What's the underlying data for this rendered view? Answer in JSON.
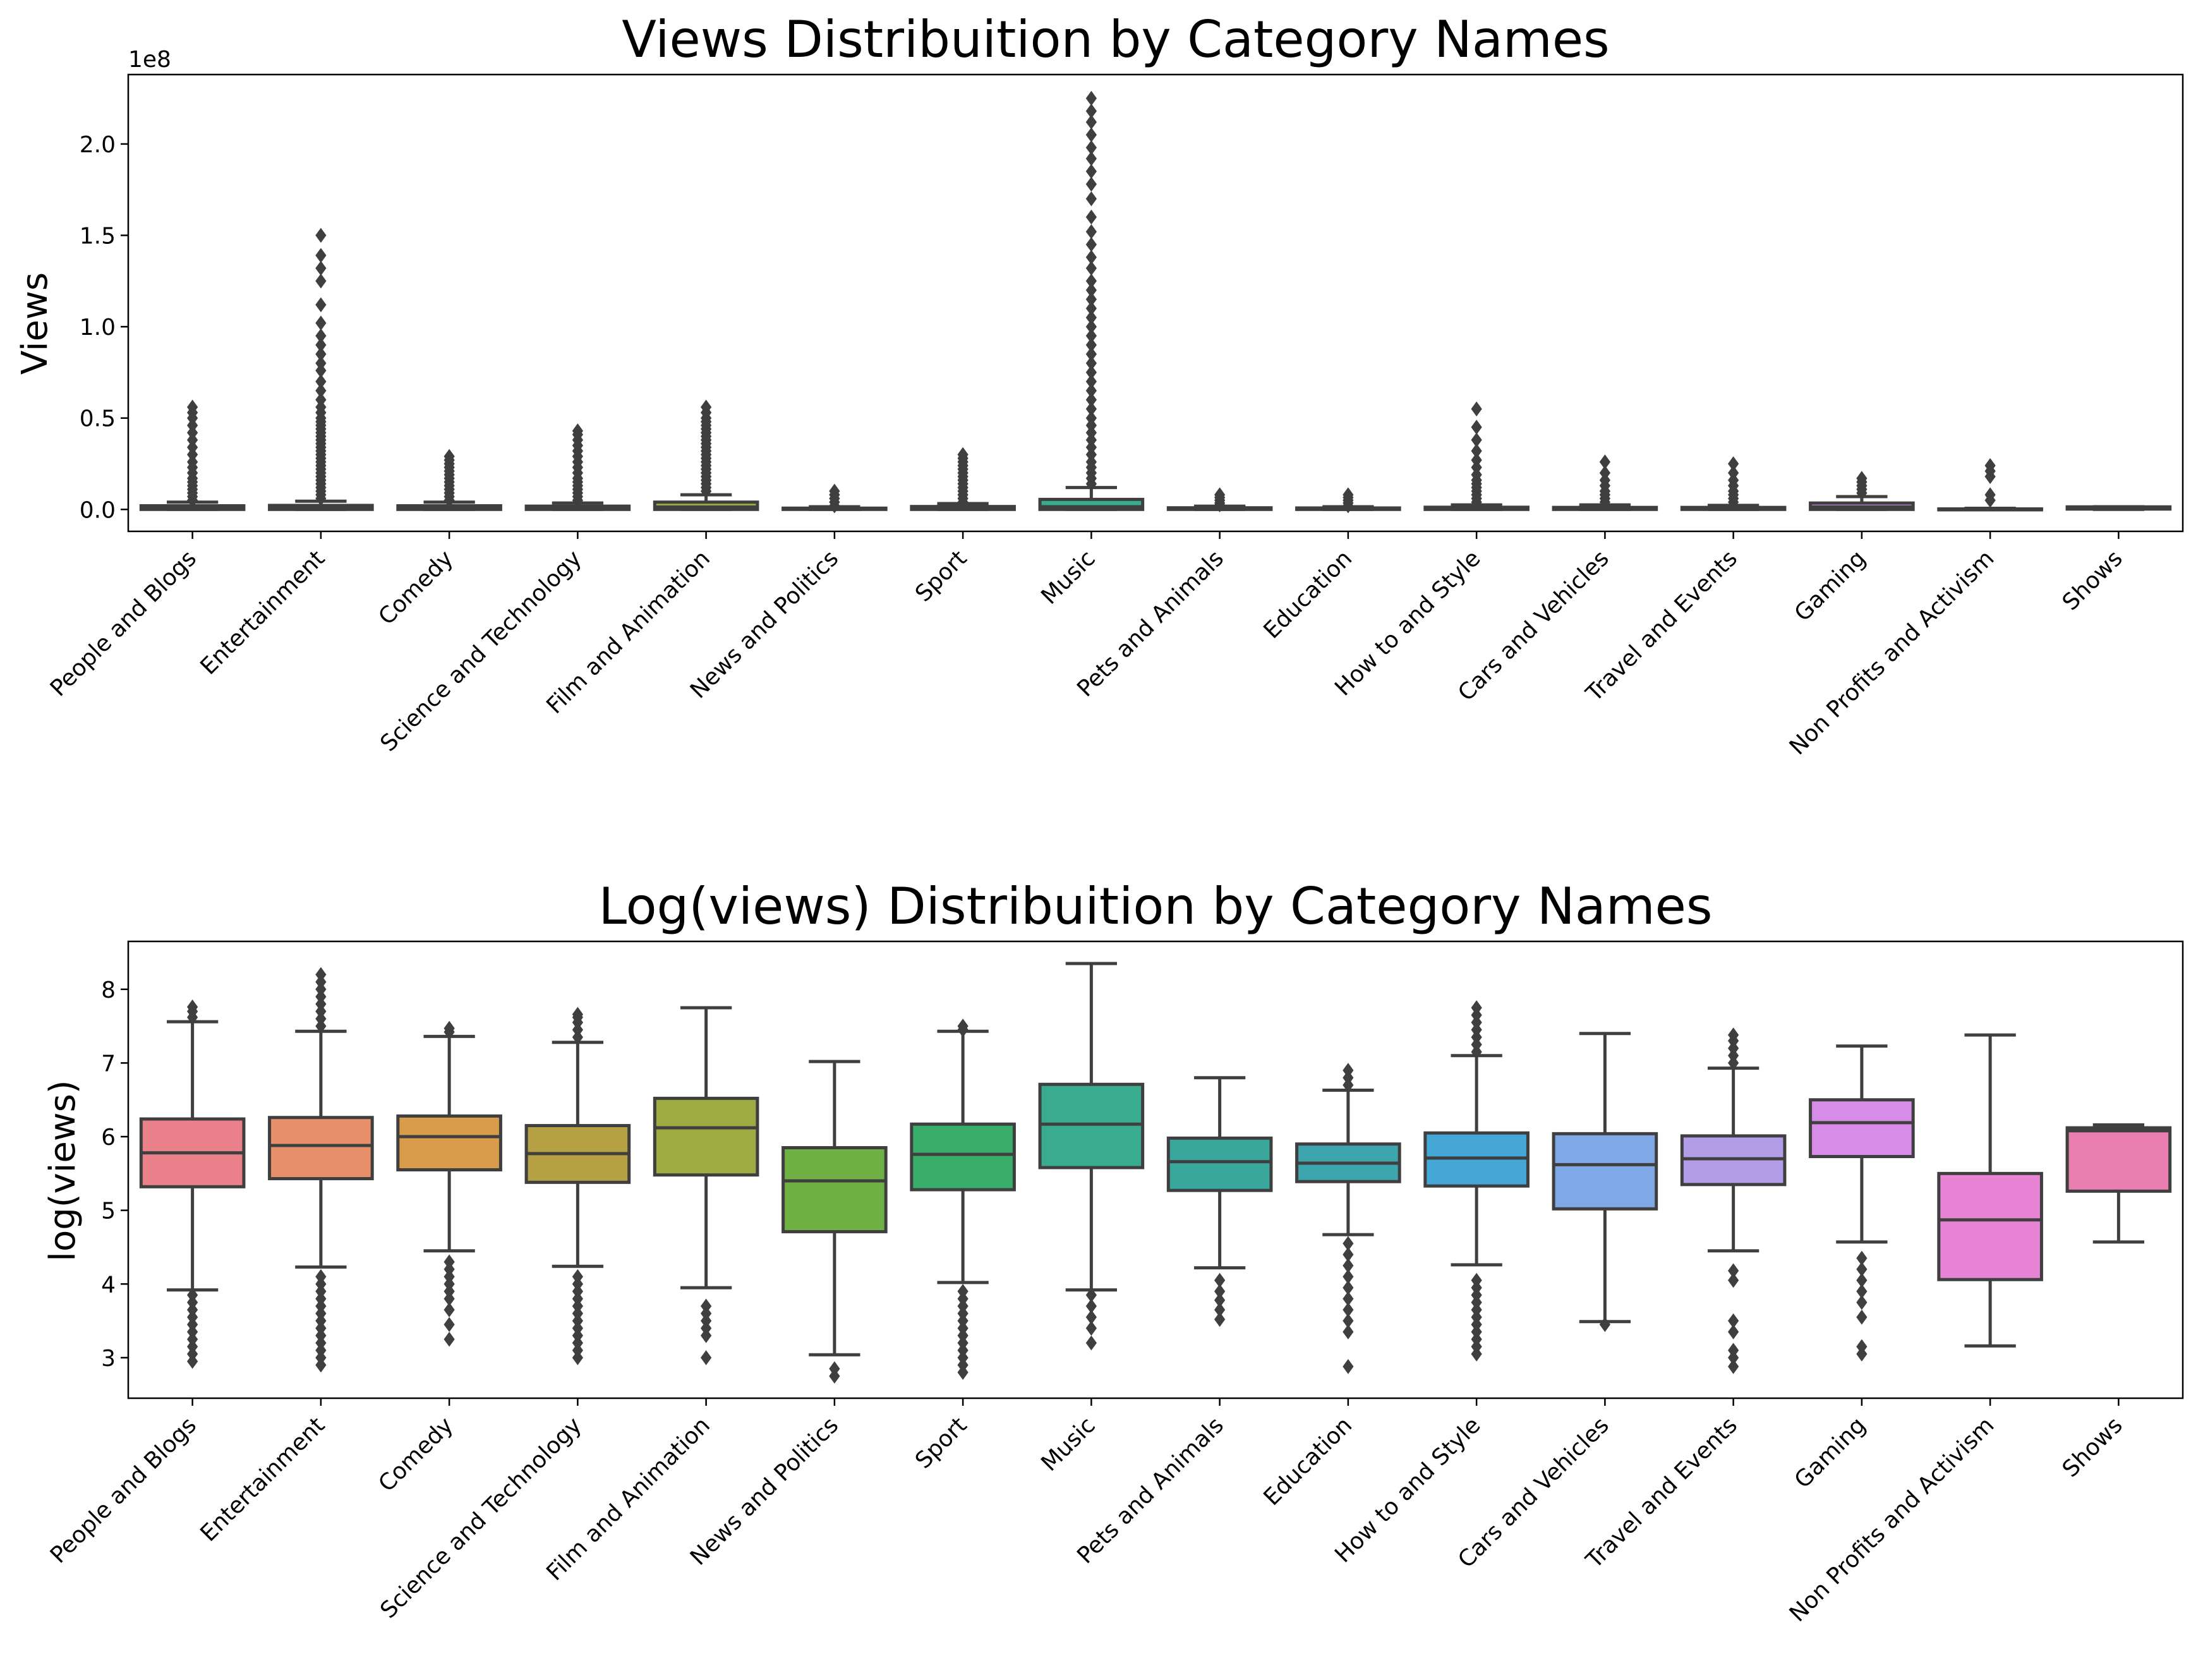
{
  "chart_data": [
    {
      "type": "box",
      "title": "Views Distribuition by Category Names",
      "xlabel": "",
      "ylabel": "Views",
      "y_offset_label": "1e8",
      "ylim": [
        -0.12,
        2.38
      ],
      "yticks": [
        0.0,
        0.5,
        1.0,
        1.5,
        2.0
      ],
      "ytick_labels": [
        "0.0",
        "0.5",
        "1.0",
        "1.5",
        "2.0"
      ],
      "categories": [
        "People and Blogs",
        "Entertainment",
        "Comedy",
        "Science and Technology",
        "Film and Animation",
        "News and Politics",
        "Sport",
        "Music",
        "Pets and Animals",
        "Education",
        "How to and Style",
        "Cars and Vehicles",
        "Travel and Events",
        "Gaming",
        "Non Profits and Activism",
        "Shows"
      ],
      "colors": [
        "#e9808a",
        "#e8906c",
        "#d89c4a",
        "#b6a044",
        "#9eab42",
        "#6fb144",
        "#39ad6a",
        "#39ab8f",
        "#3aa79d",
        "#3ca5ad",
        "#45a7d6",
        "#7ea8e6",
        "#b49de8",
        "#d78ce9",
        "#e884d6",
        "#e87fb0"
      ],
      "boxes": [
        {
          "whislo": 0.0,
          "q1": 0.0,
          "med": 0.006,
          "q3": 0.02,
          "whishi": 0.04,
          "fliers": [
            0.05,
            0.07,
            0.09,
            0.11,
            0.13,
            0.15,
            0.17,
            0.2,
            0.23,
            0.26,
            0.3,
            0.34,
            0.38,
            0.42,
            0.46,
            0.5,
            0.53,
            0.56
          ]
        },
        {
          "whislo": 0.0,
          "q1": 0.0,
          "med": 0.007,
          "q3": 0.022,
          "whishi": 0.045,
          "fliers": [
            0.06,
            0.08,
            0.1,
            0.12,
            0.14,
            0.16,
            0.18,
            0.2,
            0.22,
            0.24,
            0.26,
            0.28,
            0.3,
            0.32,
            0.34,
            0.36,
            0.38,
            0.4,
            0.42,
            0.44,
            0.46,
            0.48,
            0.5,
            0.53,
            0.56,
            0.6,
            0.65,
            0.7,
            0.76,
            0.8,
            0.85,
            0.9,
            0.95,
            1.02,
            1.12,
            1.25,
            1.32,
            1.39,
            1.5
          ]
        },
        {
          "whislo": 0.0,
          "q1": 0.0,
          "med": 0.01,
          "q3": 0.02,
          "whishi": 0.04,
          "fliers": [
            0.05,
            0.07,
            0.09,
            0.11,
            0.13,
            0.15,
            0.17,
            0.19,
            0.21,
            0.23,
            0.25,
            0.27,
            0.29
          ]
        },
        {
          "whislo": 0.0,
          "q1": 0.0,
          "med": 0.006,
          "q3": 0.018,
          "whishi": 0.035,
          "fliers": [
            0.05,
            0.07,
            0.09,
            0.11,
            0.13,
            0.15,
            0.17,
            0.2,
            0.23,
            0.26,
            0.29,
            0.32,
            0.35,
            0.38,
            0.41,
            0.43
          ]
        },
        {
          "whislo": 0.0,
          "q1": 0.0,
          "med": 0.013,
          "q3": 0.04,
          "whishi": 0.08,
          "fliers": [
            0.1,
            0.12,
            0.14,
            0.16,
            0.18,
            0.2,
            0.22,
            0.24,
            0.26,
            0.28,
            0.3,
            0.32,
            0.34,
            0.36,
            0.38,
            0.4,
            0.42,
            0.44,
            0.46,
            0.48,
            0.5,
            0.53,
            0.56
          ]
        },
        {
          "whislo": 0.0,
          "q1": 0.0,
          "med": 0.002,
          "q3": 0.007,
          "whishi": 0.015,
          "fliers": [
            0.02,
            0.04,
            0.06,
            0.08,
            0.1
          ]
        },
        {
          "whislo": 0.0,
          "q1": 0.0,
          "med": 0.006,
          "q3": 0.016,
          "whishi": 0.032,
          "fliers": [
            0.04,
            0.06,
            0.08,
            0.1,
            0.12,
            0.14,
            0.16,
            0.18,
            0.2,
            0.22,
            0.24,
            0.26,
            0.28,
            0.3
          ]
        },
        {
          "whislo": 0.0,
          "q1": 0.0,
          "med": 0.015,
          "q3": 0.055,
          "whishi": 0.12,
          "fliers": [
            0.14,
            0.17,
            0.2,
            0.23,
            0.26,
            0.3,
            0.34,
            0.38,
            0.42,
            0.46,
            0.5,
            0.55,
            0.6,
            0.65,
            0.7,
            0.75,
            0.8,
            0.85,
            0.9,
            0.95,
            1.0,
            1.05,
            1.1,
            1.15,
            1.2,
            1.25,
            1.32,
            1.38,
            1.45,
            1.52,
            1.6,
            1.7,
            1.78,
            1.85,
            1.92,
            1.98,
            2.05,
            2.12,
            2.18,
            2.25
          ]
        },
        {
          "whislo": 0.0,
          "q1": 0.0,
          "med": 0.004,
          "q3": 0.009,
          "whishi": 0.018,
          "fliers": [
            0.025,
            0.035,
            0.05,
            0.065,
            0.08
          ]
        },
        {
          "whislo": 0.0,
          "q1": 0.0,
          "med": 0.003,
          "q3": 0.008,
          "whishi": 0.015,
          "fliers": [
            0.02,
            0.035,
            0.05,
            0.065,
            0.08
          ]
        },
        {
          "whislo": 0.0,
          "q1": 0.0,
          "med": 0.005,
          "q3": 0.012,
          "whishi": 0.025,
          "fliers": [
            0.04,
            0.06,
            0.08,
            0.1,
            0.12,
            0.14,
            0.16,
            0.19,
            0.23,
            0.27,
            0.32,
            0.38,
            0.45,
            0.55
          ]
        },
        {
          "whislo": 0.0,
          "q1": 0.0,
          "med": 0.004,
          "q3": 0.011,
          "whishi": 0.025,
          "fliers": [
            0.04,
            0.06,
            0.08,
            0.1,
            0.13,
            0.16,
            0.2,
            0.26
          ]
        },
        {
          "whislo": 0.0,
          "q1": 0.0,
          "med": 0.005,
          "q3": 0.011,
          "whishi": 0.022,
          "fliers": [
            0.04,
            0.06,
            0.08,
            0.1,
            0.13,
            0.16,
            0.2,
            0.25
          ]
        },
        {
          "whislo": 0.0,
          "q1": 0.0,
          "med": 0.014,
          "q3": 0.035,
          "whishi": 0.07,
          "fliers": [
            0.09,
            0.11,
            0.13,
            0.15,
            0.17
          ]
        },
        {
          "whislo": 0.0,
          "q1": 0.0,
          "med": 0.001,
          "q3": 0.003,
          "whishi": 0.006,
          "fliers": [
            0.05,
            0.08,
            0.18,
            0.21,
            0.24
          ]
        },
        {
          "whislo": 0.0,
          "q1": 0.002,
          "med": 0.012,
          "q3": 0.014,
          "whishi": 0.015,
          "fliers": []
        }
      ]
    },
    {
      "type": "box",
      "title": "Log(views) Distribuition by Category Names",
      "xlabel": "",
      "ylabel": "log(views)",
      "ylim": [
        2.45,
        8.65
      ],
      "yticks": [
        3,
        4,
        5,
        6,
        7,
        8
      ],
      "ytick_labels": [
        "3",
        "4",
        "5",
        "6",
        "7",
        "8"
      ],
      "categories": [
        "People and Blogs",
        "Entertainment",
        "Comedy",
        "Science and Technology",
        "Film and Animation",
        "News and Politics",
        "Sport",
        "Music",
        "Pets and Animals",
        "Education",
        "How to and Style",
        "Cars and Vehicles",
        "Travel and Events",
        "Gaming",
        "Non Profits and Activism",
        "Shows"
      ],
      "colors": [
        "#e9808a",
        "#e8906c",
        "#d89c4a",
        "#b6a044",
        "#9eab42",
        "#6fb144",
        "#39ad6a",
        "#39ab8f",
        "#3aa79d",
        "#3ca5ad",
        "#45a7d6",
        "#7ea8e6",
        "#b49de8",
        "#d78ce9",
        "#e884d6",
        "#e87fb0"
      ],
      "boxes": [
        {
          "whislo": 3.92,
          "q1": 5.32,
          "med": 5.78,
          "q3": 6.24,
          "whishi": 7.56,
          "fliers": [
            2.95,
            3.05,
            3.15,
            3.25,
            3.35,
            3.45,
            3.55,
            3.65,
            3.75,
            3.85,
            7.62,
            7.7,
            7.76
          ]
        },
        {
          "whislo": 4.23,
          "q1": 5.43,
          "med": 5.88,
          "q3": 6.26,
          "whishi": 7.43,
          "fliers": [
            2.9,
            3.0,
            3.1,
            3.2,
            3.3,
            3.4,
            3.5,
            3.6,
            3.7,
            3.8,
            3.9,
            4.0,
            4.1,
            7.5,
            7.6,
            7.7,
            7.8,
            7.9,
            8.0,
            8.1,
            8.2
          ]
        },
        {
          "whislo": 4.45,
          "q1": 5.55,
          "med": 6.0,
          "q3": 6.28,
          "whishi": 7.36,
          "fliers": [
            3.25,
            3.45,
            3.65,
            3.8,
            3.9,
            4.0,
            4.1,
            4.2,
            4.3,
            7.42,
            7.47
          ]
        },
        {
          "whislo": 4.24,
          "q1": 5.38,
          "med": 5.77,
          "q3": 6.15,
          "whishi": 7.28,
          "fliers": [
            3.0,
            3.1,
            3.2,
            3.3,
            3.4,
            3.5,
            3.6,
            3.7,
            3.8,
            3.9,
            4.0,
            4.1,
            7.35,
            7.45,
            7.55,
            7.62,
            7.66
          ]
        },
        {
          "whislo": 3.95,
          "q1": 5.48,
          "med": 6.12,
          "q3": 6.52,
          "whishi": 7.75,
          "fliers": [
            3.0,
            3.3,
            3.4,
            3.5,
            3.6,
            3.7
          ]
        },
        {
          "whislo": 3.04,
          "q1": 4.71,
          "med": 5.4,
          "q3": 5.85,
          "whishi": 7.02,
          "fliers": [
            2.75,
            2.85
          ]
        },
        {
          "whislo": 4.02,
          "q1": 5.28,
          "med": 5.76,
          "q3": 6.17,
          "whishi": 7.43,
          "fliers": [
            2.8,
            2.9,
            3.0,
            3.1,
            3.2,
            3.3,
            3.4,
            3.5,
            3.6,
            3.7,
            3.8,
            3.9,
            7.45,
            7.5
          ]
        },
        {
          "whislo": 3.92,
          "q1": 5.58,
          "med": 6.17,
          "q3": 6.71,
          "whishi": 8.35,
          "fliers": [
            3.2,
            3.4,
            3.55,
            3.7,
            3.85
          ]
        },
        {
          "whislo": 4.22,
          "q1": 5.27,
          "med": 5.66,
          "q3": 5.98,
          "whishi": 6.8,
          "fliers": [
            3.52,
            3.65,
            3.78,
            3.9,
            4.05
          ]
        },
        {
          "whislo": 4.67,
          "q1": 5.39,
          "med": 5.64,
          "q3": 5.9,
          "whishi": 6.63,
          "fliers": [
            2.88,
            3.35,
            3.5,
            3.65,
            3.8,
            3.95,
            4.1,
            4.25,
            4.4,
            4.55,
            6.7,
            6.8,
            6.9
          ]
        },
        {
          "whislo": 4.26,
          "q1": 5.33,
          "med": 5.71,
          "q3": 6.05,
          "whishi": 7.1,
          "fliers": [
            3.05,
            3.15,
            3.25,
            3.35,
            3.45,
            3.55,
            3.65,
            3.75,
            3.85,
            3.95,
            4.05,
            7.15,
            7.25,
            7.35,
            7.45,
            7.55,
            7.65,
            7.75
          ]
        },
        {
          "whislo": 3.49,
          "q1": 5.02,
          "med": 5.62,
          "q3": 6.04,
          "whishi": 7.4,
          "fliers": [
            3.45
          ]
        },
        {
          "whislo": 4.45,
          "q1": 5.35,
          "med": 5.7,
          "q3": 6.01,
          "whishi": 6.93,
          "fliers": [
            2.88,
            3.0,
            3.1,
            3.35,
            3.5,
            4.05,
            4.18,
            7.0,
            7.1,
            7.2,
            7.3,
            7.38
          ]
        },
        {
          "whislo": 4.57,
          "q1": 5.73,
          "med": 6.19,
          "q3": 6.5,
          "whishi": 7.23,
          "fliers": [
            3.05,
            3.15,
            3.55,
            3.75,
            3.9,
            4.05,
            4.2,
            4.35
          ]
        },
        {
          "whislo": 3.16,
          "q1": 4.06,
          "med": 4.87,
          "q3": 5.5,
          "whishi": 7.38,
          "fliers": []
        },
        {
          "whislo": 4.57,
          "q1": 5.26,
          "med": 6.08,
          "q3": 6.12,
          "whishi": 6.16,
          "fliers": []
        }
      ]
    }
  ]
}
